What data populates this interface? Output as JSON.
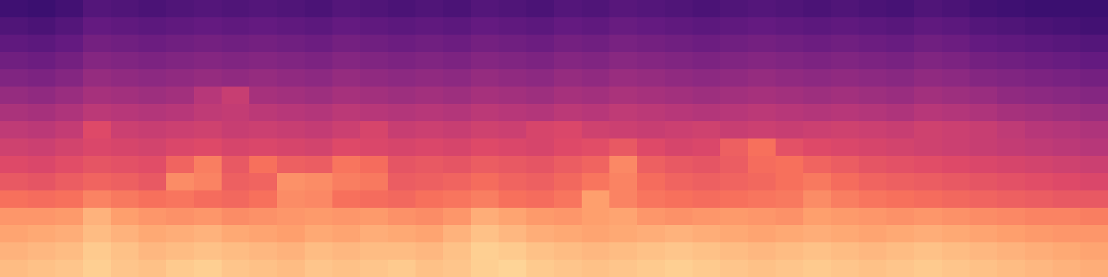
{
  "chart_data": {
    "type": "heatmap",
    "color": "magma",
    "tick_labels": false,
    "grid": false,
    "zlim": [
      -100,
      0
    ],
    "z": [
      [
        -14,
        -13,
        -12,
        -10,
        -12,
        -13,
        -11,
        -10,
        -12,
        -13,
        -14,
        -12,
        -13,
        -12,
        -11,
        -13,
        -12,
        -10,
        -9,
        -11,
        -12,
        -13,
        -12,
        -11,
        -10,
        -11,
        -12,
        -13,
        -12,
        -11,
        -12,
        -13,
        -12,
        -11,
        -12,
        -13,
        -14,
        -15,
        -16,
        -17
      ],
      [
        -16,
        -15,
        -14,
        -11,
        -13,
        -15,
        -14,
        -13,
        -14,
        -15,
        -16,
        -14,
        -15,
        -14,
        -14,
        -15,
        -13,
        -10,
        -11,
        -13,
        -14,
        -15,
        -14,
        -13,
        -12,
        -13,
        -14,
        -15,
        -14,
        -13,
        -14,
        -15,
        -14,
        -13,
        -14,
        -15,
        -16,
        -17,
        -18,
        -19
      ],
      [
        -19,
        -18,
        -17,
        -14,
        -16,
        -18,
        -17,
        -16,
        -18,
        -19,
        -20,
        -18,
        -19,
        -17,
        -18,
        -19,
        -16,
        -13,
        -15,
        -17,
        -18,
        -19,
        -18,
        -17,
        -16,
        -17,
        -18,
        -19,
        -18,
        -17,
        -18,
        -19,
        -18,
        -17,
        -18,
        -19,
        -20,
        -21,
        -22,
        -22
      ],
      [
        -22,
        -22,
        -21,
        -16,
        -20,
        -22,
        -23,
        -22,
        -24,
        -23,
        -22,
        -21,
        -22,
        -21,
        -23,
        -24,
        -22,
        -17,
        -19,
        -21,
        -22,
        -20,
        -19,
        -22,
        -23,
        -22,
        -21,
        -22,
        -23,
        -20,
        -21,
        -22,
        -23,
        -22,
        -23,
        -24,
        -25,
        -26,
        -26,
        -27
      ],
      [
        -30,
        -31,
        -30,
        -26,
        -28,
        -30,
        -29,
        -31,
        -32,
        -30,
        -24,
        -25,
        -30,
        -31,
        -32,
        -30,
        -29,
        -27,
        -30,
        -31,
        -29,
        -20,
        -26,
        -29,
        -30,
        -31,
        -30,
        -29,
        -28,
        -24,
        -27,
        -29,
        -30,
        -31,
        -32,
        -33,
        -34,
        -35,
        -36,
        -36
      ],
      [
        -36,
        -37,
        -35,
        -33,
        -34,
        -36,
        -24,
        -26,
        -34,
        -33,
        -23,
        -24,
        -27,
        -28,
        -35,
        -34,
        -33,
        -31,
        -33,
        -34,
        -32,
        -29,
        -26,
        -31,
        -33,
        -34,
        -33,
        -32,
        -30,
        -28,
        -31,
        -33,
        -34,
        -35,
        -36,
        -37,
        -38,
        -39,
        -40,
        -41
      ],
      [
        -40,
        -41,
        -39,
        -37,
        -38,
        -39,
        -33,
        -27,
        -36,
        -30,
        -34,
        -35,
        -29,
        -31,
        -37,
        -36,
        -37,
        -35,
        -36,
        -37,
        -35,
        -33,
        -25,
        -34,
        -36,
        -37,
        -35,
        -31,
        -30,
        -33,
        -35,
        -37,
        -38,
        -39,
        -40,
        -41,
        -42,
        -43,
        -44,
        -45
      ],
      [
        -44,
        -45,
        -43,
        -41,
        -42,
        -43,
        -41,
        -40,
        -42,
        -41,
        -42,
        -43,
        -40,
        -41,
        -42,
        -41,
        -42,
        -40,
        -41,
        -42,
        -40,
        -39,
        -36,
        -40,
        -42,
        -41,
        -34,
        -30,
        -38,
        -40,
        -41,
        -42,
        -43,
        -44,
        -45,
        -46,
        -47,
        -48,
        -49,
        -50
      ],
      [
        -48,
        -49,
        -47,
        -40,
        -45,
        -46,
        -45,
        -44,
        -46,
        -45,
        -46,
        -47,
        -45,
        -42,
        -46,
        -45,
        -46,
        -44,
        -45,
        -42,
        -41,
        -44,
        -45,
        -46,
        -45,
        -44,
        -46,
        -45,
        -46,
        -45,
        -44,
        -45,
        -46,
        -44,
        -45,
        -46,
        -48,
        -50,
        -51,
        -52
      ],
      [
        -53,
        -54,
        -52,
        -49,
        -50,
        -51,
        -50,
        -48,
        -47,
        -49,
        -50,
        -51,
        -49,
        -50,
        -51,
        -50,
        -51,
        -49,
        -50,
        -51,
        -49,
        -50,
        -48,
        -49,
        -50,
        -51,
        -50,
        -49,
        -50,
        -51,
        -50,
        -51,
        -52,
        -50,
        -51,
        -52,
        -54,
        -55,
        -56,
        -57
      ],
      [
        -58,
        -59,
        -57,
        -54,
        -55,
        -56,
        -55,
        -50,
        -46,
        -54,
        -55,
        -56,
        -54,
        -55,
        -56,
        -55,
        -56,
        -54,
        -55,
        -56,
        -54,
        -55,
        -53,
        -54,
        -55,
        -56,
        -55,
        -54,
        -55,
        -56,
        -55,
        -56,
        -57,
        -55,
        -56,
        -57,
        -59,
        -60,
        -61,
        -62
      ],
      [
        -63,
        -64,
        -62,
        -58,
        -59,
        -60,
        -59,
        -58,
        -59,
        -58,
        -59,
        -60,
        -58,
        -59,
        -60,
        -59,
        -60,
        -58,
        -59,
        -60,
        -58,
        -59,
        -57,
        -58,
        -59,
        -60,
        -59,
        -58,
        -59,
        -60,
        -59,
        -60,
        -61,
        -59,
        -60,
        -62,
        -63,
        -64,
        -65,
        -66
      ],
      [
        -67,
        -68,
        -66,
        -62,
        -63,
        -64,
        -63,
        -62,
        -63,
        -62,
        -63,
        -64,
        -62,
        -63,
        -64,
        -63,
        -64,
        -62,
        -63,
        -64,
        -62,
        -63,
        -61,
        -62,
        -63,
        -64,
        -63,
        -62,
        -63,
        -64,
        -63,
        -64,
        -65,
        -63,
        -64,
        -66,
        -67,
        -68,
        -69,
        -70
      ],
      [
        -71,
        -72,
        -70,
        -66,
        -67,
        -68,
        -67,
        -66,
        -67,
        -66,
        -67,
        -68,
        -66,
        -67,
        -68,
        -67,
        -68,
        -66,
        -67,
        -68,
        -66,
        -67,
        -65,
        -66,
        -67,
        -68,
        -67,
        -66,
        -67,
        -68,
        -67,
        -68,
        -69,
        -67,
        -68,
        -70,
        -71,
        -72,
        -73,
        -74
      ],
      [
        -75,
        -76,
        -74,
        -70,
        -71,
        -72,
        -71,
        -70,
        -71,
        -70,
        -71,
        -72,
        -70,
        -71,
        -72,
        -71,
        -72,
        -70,
        -71,
        -72,
        -70,
        -71,
        -69,
        -70,
        -71,
        -72,
        -71,
        -70,
        -71,
        -72,
        -71,
        -72,
        -73,
        -71,
        -72,
        -74,
        -75,
        -76,
        -77,
        -78
      ],
      [
        -79,
        -80,
        -78,
        -74,
        -75,
        -76,
        -75,
        -74,
        -75,
        -74,
        -75,
        -76,
        -74,
        -75,
        -76,
        -75,
        -76,
        -74,
        -75,
        -76,
        -74,
        -75,
        -73,
        -74,
        -75,
        -76,
        -75,
        -74,
        -75,
        -76,
        -75,
        -76,
        -77,
        -75,
        -76,
        -78,
        -79,
        -80,
        -80,
        -80
      ]
    ]
  }
}
